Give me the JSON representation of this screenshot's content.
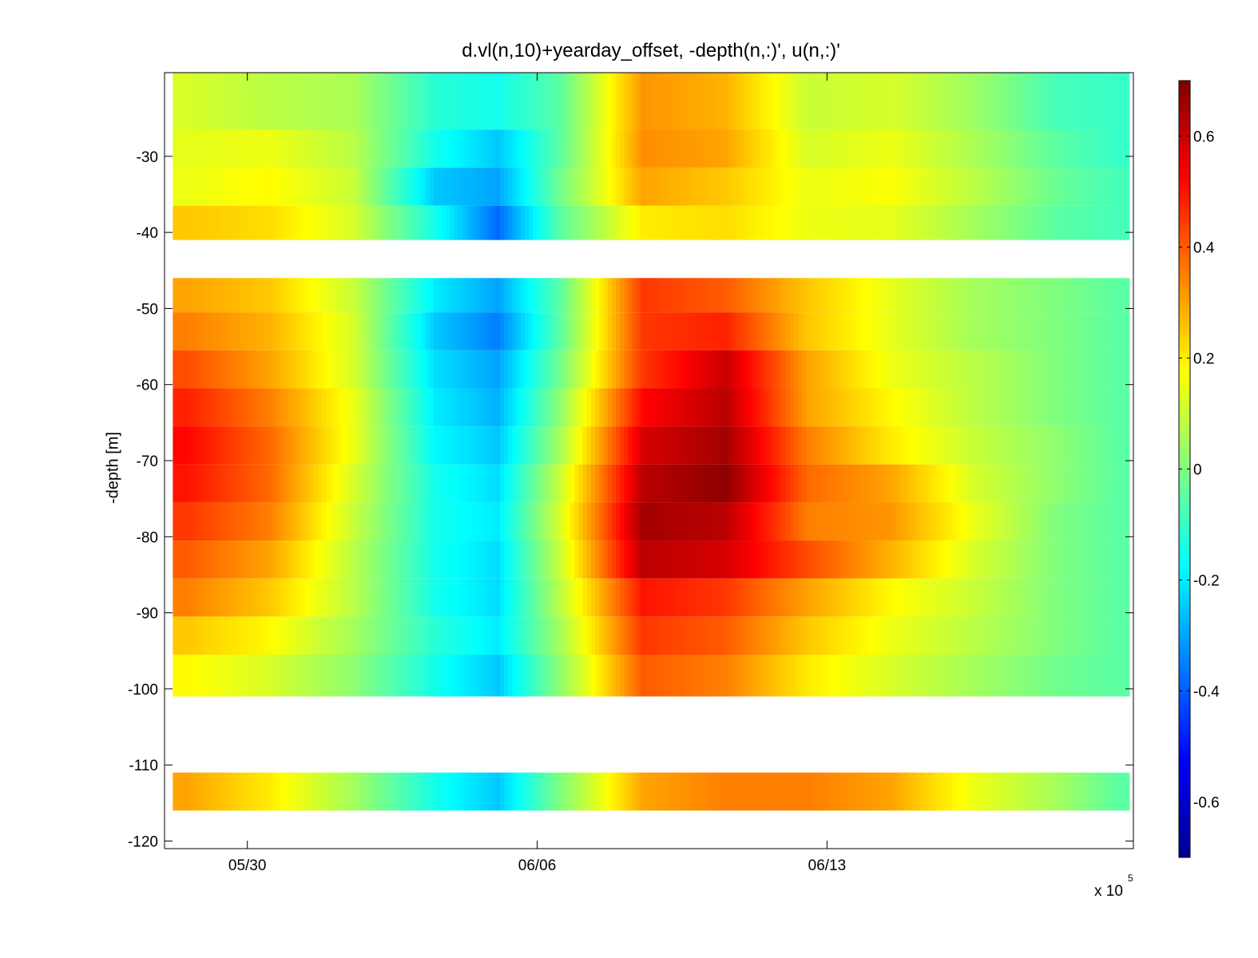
{
  "chart_data": {
    "type": "heatmap",
    "title": "d.vl(n,10)+yearday_offset, -depth(n,:)', u(n,:)'",
    "xlabel": "",
    "ylabel": "-depth [m]",
    "x_tick_labels": [
      "05/30",
      "06/06",
      "06/13"
    ],
    "x_exponent_base": "x 10",
    "x_exponent_power": "5",
    "x_range_days": [
      "05/28",
      "06/20"
    ],
    "y_ticks": [
      -30,
      -40,
      -50,
      -60,
      -70,
      -80,
      -90,
      -100,
      -110,
      -120
    ],
    "ylim": [
      -121,
      -19
    ],
    "colorbar": {
      "colormap": "jet",
      "range": [
        -0.7,
        0.7
      ],
      "ticks": [
        0.6,
        0.4,
        0.2,
        0,
        -0.2,
        -0.4,
        -0.6
      ]
    },
    "depth_bands_m": [
      {
        "top": -19,
        "bottom": -41
      },
      {
        "top": -46,
        "bottom": -101
      },
      {
        "top": -111,
        "bottom": -116
      }
    ],
    "depth_bins_m": [
      -24,
      -29,
      -34,
      -39,
      -48,
      -53,
      -58,
      -63,
      -68,
      -73,
      -78,
      -83,
      -88,
      -93,
      -98,
      -113.5
    ],
    "time_columns_days_since_0528": [
      0.5,
      2.5,
      4.5,
      6.5,
      8,
      9.5,
      11.5,
      13.5,
      15.5,
      17.5,
      19.5,
      21.5,
      23
    ],
    "u_values": [
      [
        0.12,
        0.08,
        0.06,
        -0.12,
        -0.15,
        -0.05,
        0.32,
        0.28,
        0.1,
        0.12,
        0.04,
        -0.08,
        -0.1
      ],
      [
        0.14,
        0.15,
        0.08,
        -0.15,
        -0.25,
        -0.05,
        0.33,
        0.3,
        0.12,
        0.15,
        0.06,
        -0.05,
        -0.1
      ],
      [
        0.15,
        0.18,
        0.1,
        -0.25,
        -0.3,
        -0.02,
        0.3,
        0.25,
        0.15,
        0.17,
        0.08,
        -0.03,
        -0.08
      ],
      [
        0.25,
        0.22,
        0.12,
        -0.15,
        -0.38,
        -0.05,
        0.2,
        0.22,
        0.15,
        0.14,
        0.05,
        -0.05,
        -0.08
      ],
      [
        0.3,
        0.25,
        0.1,
        -0.2,
        -0.3,
        -0.05,
        0.45,
        0.4,
        0.25,
        0.14,
        0.05,
        0.0,
        -0.05
      ],
      [
        0.35,
        0.28,
        0.12,
        -0.25,
        -0.35,
        -0.05,
        0.45,
        0.48,
        0.25,
        0.14,
        0.05,
        0.0,
        -0.05
      ],
      [
        0.42,
        0.3,
        0.12,
        -0.22,
        -0.3,
        -0.02,
        0.45,
        0.6,
        0.3,
        0.15,
        0.08,
        0.0,
        -0.05
      ],
      [
        0.48,
        0.35,
        0.15,
        -0.2,
        -0.28,
        0.02,
        0.52,
        0.62,
        0.3,
        0.18,
        0.08,
        0.0,
        -0.05
      ],
      [
        0.52,
        0.38,
        0.15,
        -0.18,
        -0.25,
        0.05,
        0.58,
        0.65,
        0.35,
        0.2,
        0.1,
        0.02,
        -0.05
      ],
      [
        0.5,
        0.38,
        0.12,
        -0.15,
        -0.22,
        0.1,
        0.62,
        0.68,
        0.38,
        0.3,
        0.12,
        0.02,
        -0.05
      ],
      [
        0.45,
        0.35,
        0.1,
        -0.15,
        -0.2,
        0.12,
        0.65,
        0.62,
        0.35,
        0.32,
        0.15,
        0.0,
        -0.05
      ],
      [
        0.4,
        0.3,
        0.08,
        -0.15,
        -0.22,
        0.1,
        0.62,
        0.58,
        0.42,
        0.28,
        0.12,
        0.0,
        -0.05
      ],
      [
        0.35,
        0.25,
        0.08,
        -0.15,
        -0.22,
        0.08,
        0.5,
        0.45,
        0.3,
        0.18,
        0.1,
        0.0,
        -0.05
      ],
      [
        0.25,
        0.18,
        0.05,
        -0.12,
        -0.2,
        0.05,
        0.45,
        0.4,
        0.25,
        0.15,
        0.08,
        0.0,
        -0.05
      ],
      [
        0.18,
        0.12,
        0.02,
        -0.15,
        -0.25,
        0.02,
        0.4,
        0.35,
        0.2,
        0.12,
        0.05,
        -0.02,
        -0.05
      ],
      [
        0.3,
        0.2,
        0.05,
        -0.15,
        -0.25,
        0.0,
        0.3,
        0.35,
        0.35,
        0.3,
        0.15,
        0.05,
        -0.05
      ]
    ]
  }
}
